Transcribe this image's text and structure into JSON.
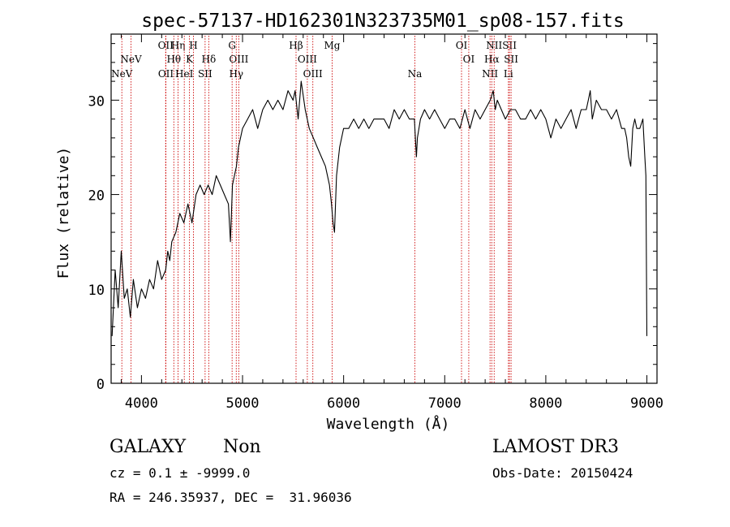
{
  "chart_data": {
    "type": "line",
    "title": "spec-57137-HD162301N323735M01_sp08-157.fits",
    "xlabel": "Wavelength (Å)",
    "ylabel": "Flux (relative)",
    "xlim": [
      3700,
      9100
    ],
    "ylim": [
      0,
      37
    ],
    "xticks": [
      4000,
      5000,
      6000,
      7000,
      8000,
      9000
    ],
    "yticks": [
      0,
      10,
      20,
      30
    ],
    "series": [
      {
        "name": "flux",
        "x": [
          3710,
          3740,
          3770,
          3800,
          3830,
          3860,
          3890,
          3920,
          3960,
          4000,
          4040,
          4080,
          4120,
          4160,
          4200,
          4240,
          4260,
          4280,
          4300,
          4340,
          4380,
          4420,
          4460,
          4500,
          4540,
          4580,
          4620,
          4660,
          4700,
          4740,
          4780,
          4820,
          4860,
          4880,
          4900,
          4920,
          4940,
          4960,
          5000,
          5050,
          5100,
          5150,
          5200,
          5250,
          5300,
          5350,
          5400,
          5450,
          5500,
          5520,
          5550,
          5580,
          5620,
          5660,
          5700,
          5740,
          5780,
          5820,
          5860,
          5880,
          5895,
          5910,
          5930,
          5960,
          6000,
          6050,
          6100,
          6150,
          6200,
          6250,
          6300,
          6350,
          6400,
          6450,
          6500,
          6550,
          6600,
          6650,
          6700,
          6710,
          6720,
          6730,
          6760,
          6800,
          6850,
          6900,
          6950,
          7000,
          7050,
          7100,
          7150,
          7200,
          7250,
          7300,
          7350,
          7400,
          7450,
          7480,
          7500,
          7520,
          7560,
          7600,
          7650,
          7700,
          7750,
          7800,
          7850,
          7900,
          7950,
          8000,
          8050,
          8100,
          8150,
          8200,
          8250,
          8300,
          8350,
          8400,
          8420,
          8440,
          8460,
          8500,
          8550,
          8600,
          8650,
          8700,
          8750,
          8780,
          8800,
          8820,
          8840,
          8860,
          8880,
          8900,
          8930,
          8960,
          8980,
          8990,
          9000
        ],
        "y": [
          5,
          12,
          8,
          14,
          9,
          10,
          7,
          11,
          8,
          10,
          9,
          11,
          10,
          13,
          11,
          12,
          14,
          13,
          15,
          16,
          18,
          17,
          19,
          17,
          20,
          21,
          20,
          21,
          20,
          22,
          21,
          20,
          19,
          15,
          21,
          22,
          23,
          25,
          27,
          28,
          29,
          27,
          29,
          30,
          29,
          30,
          29,
          31,
          30,
          31,
          28,
          32,
          29,
          27,
          26,
          25,
          24,
          23,
          21,
          19,
          17,
          16,
          22,
          25,
          27,
          27,
          28,
          27,
          28,
          27,
          28,
          28,
          28,
          27,
          29,
          28,
          29,
          28,
          28,
          26,
          24,
          26,
          28,
          29,
          28,
          29,
          28,
          27,
          28,
          28,
          27,
          29,
          27,
          29,
          28,
          29,
          30,
          31,
          29,
          30,
          29,
          28,
          29,
          29,
          28,
          28,
          29,
          28,
          29,
          28,
          26,
          28,
          27,
          28,
          29,
          27,
          29,
          29,
          30,
          31,
          28,
          30,
          29,
          29,
          28,
          29,
          27,
          27,
          26,
          24,
          23,
          27,
          28,
          27,
          27,
          28,
          24,
          22,
          5
        ]
      }
    ],
    "line_markers": [
      {
        "label": "NeV",
        "wavelength": 3346,
        "row": 2
      },
      {
        "label": "NeV",
        "wavelength": 3426,
        "row": 1
      },
      {
        "label": "OII",
        "wavelength": 3727,
        "row": 0
      },
      {
        "label": "OII",
        "wavelength": 3729,
        "row": 2
      },
      {
        "label": "Hθ",
        "wavelength": 3798,
        "row": 1
      },
      {
        "label": "Hη",
        "wavelength": 3835,
        "row": 0
      },
      {
        "label": "HeI",
        "wavelength": 3889,
        "row": 2
      },
      {
        "label": "K",
        "wavelength": 3934,
        "row": 1
      },
      {
        "label": "H",
        "wavelength": 3969,
        "row": 0
      },
      {
        "label": "SII",
        "wavelength": 4070,
        "row": 2
      },
      {
        "label": "Hδ",
        "wavelength": 4102,
        "row": 1
      },
      {
        "label": "G",
        "wavelength": 4305,
        "row": 0
      },
      {
        "label": "OIII",
        "wavelength": 4363,
        "row": 1
      },
      {
        "label": "Hγ",
        "wavelength": 4341,
        "row": 2
      },
      {
        "label": "Hβ",
        "wavelength": 4861,
        "row": 0
      },
      {
        "label": "OIII",
        "wavelength": 4959,
        "row": 1
      },
      {
        "label": "OIII",
        "wavelength": 5007,
        "row": 2
      },
      {
        "label": "Mg",
        "wavelength": 5175,
        "row": 0
      },
      {
        "label": "Na",
        "wavelength": 5894,
        "row": 2
      },
      {
        "label": "OI",
        "wavelength": 6300,
        "row": 0
      },
      {
        "label": "OI",
        "wavelength": 6363,
        "row": 1
      },
      {
        "label": "NII",
        "wavelength": 6548,
        "row": 2
      },
      {
        "label": "Hα",
        "wavelength": 6563,
        "row": 1
      },
      {
        "label": "NII",
        "wavelength": 6584,
        "row": 0
      },
      {
        "label": "SII",
        "wavelength": 6717,
        "row": 0
      },
      {
        "label": "SII",
        "wavelength": 6731,
        "row": 1
      },
      {
        "label": "Li",
        "wavelength": 6708,
        "row": 2
      }
    ],
    "redshift_factor": 1.1375,
    "colors": {
      "line": "#000000",
      "marker": "#cc0000",
      "axis": "#000000"
    }
  },
  "info": {
    "class": "GALAXY",
    "subclass": "Non",
    "cz": "cz = 0.1 ± -9999.0",
    "radec": "RA = 246.35937, DEC =  31.96036",
    "survey": "LAMOST DR3",
    "obsdate": "Obs-Date: 20150424"
  }
}
